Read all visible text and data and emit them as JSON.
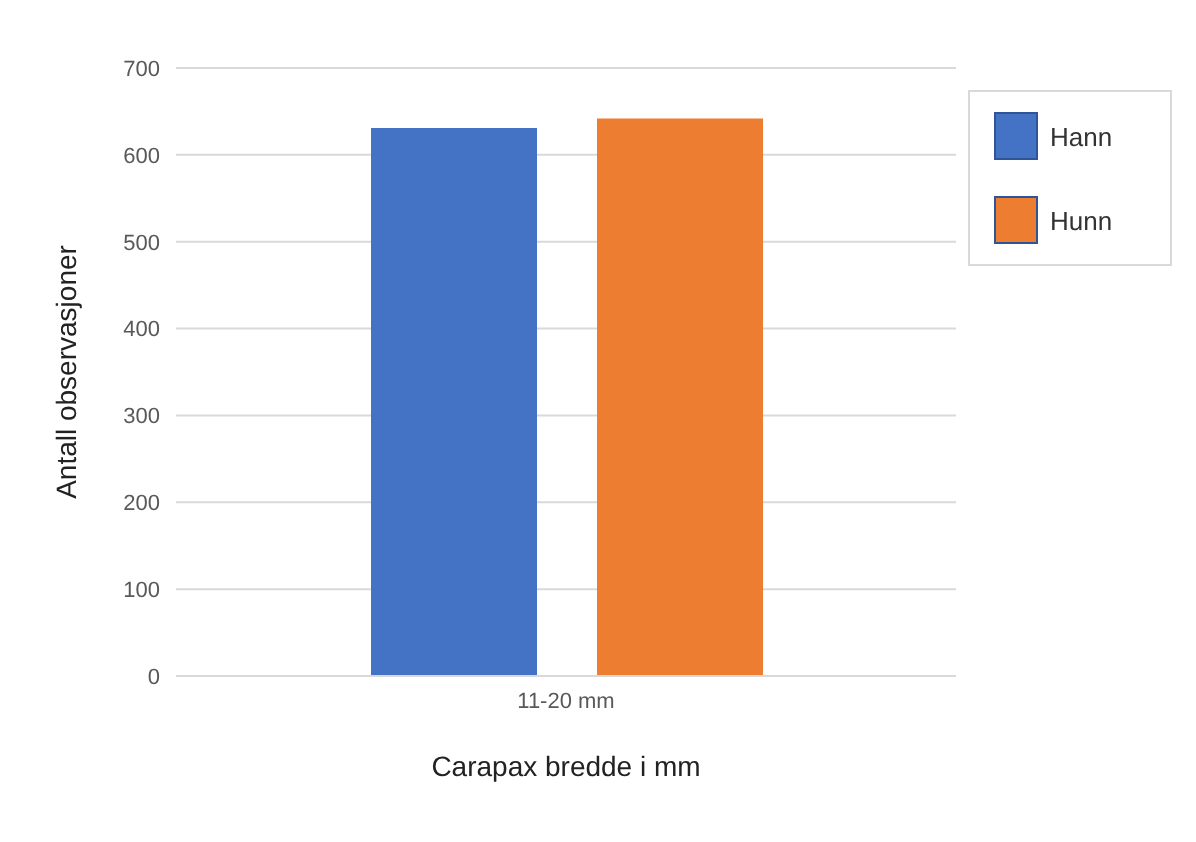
{
  "chart_data": {
    "type": "bar",
    "categories": [
      "11-20 mm"
    ],
    "series": [
      {
        "name": "Hann",
        "color": "#4472c4",
        "values": [
          631
        ]
      },
      {
        "name": "Hunn",
        "color": "#ed7d31",
        "values": [
          642
        ]
      }
    ],
    "ylim": [
      0,
      700
    ],
    "yticks": [
      0,
      100,
      200,
      300,
      400,
      500,
      600,
      700
    ],
    "grid": "y",
    "legend": "top right",
    "xlabel": "Carapax bredde  i mm",
    "ylabel": "Antall observasjoner"
  }
}
